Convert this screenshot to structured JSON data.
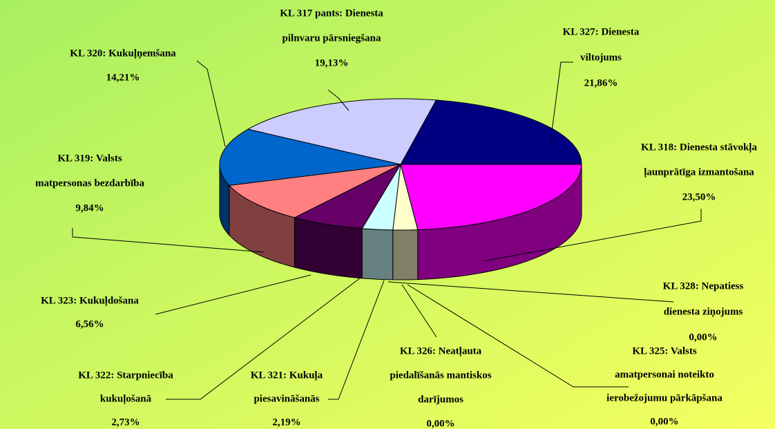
{
  "chart_data": {
    "type": "pie3d",
    "labels": [
      [
        "KL 327: Dienesta",
        "viltojums"
      ],
      [
        "KL 318: Dienesta stāvokļa",
        "ļaunprātīga izmantošana"
      ],
      [
        "KL 328: Nepatiess",
        "dienesta ziņojums"
      ],
      [
        "KL 325: Valsts",
        "amatpersonai noteikto",
        "ierobežojumu pārkāpšana"
      ],
      [
        "KL 326: Neatļauta",
        "piedalīšanās mantiskos",
        "darījumos"
      ],
      [
        "KL 321: Kukuļa",
        "piesavināšanās"
      ],
      [
        "KL 322: Starpniecība",
        "kukuļošanā"
      ],
      [
        "KL 323: Kukuļdošana"
      ],
      [
        "KL 319: Valsts",
        "matpersonas bezdarbība"
      ],
      [
        "KL 320: Kukuļņemšana"
      ],
      [
        "KL 317 pants: Dienesta",
        "pilnvaru pārsniegšana"
      ]
    ],
    "values": [
      21.86,
      23.5,
      0.0,
      0.0,
      0.0,
      2.19,
      2.73,
      6.56,
      9.84,
      14.21,
      19.13
    ],
    "value_labels": [
      "21,86%",
      "23,50%",
      "0,00%",
      "0,00%",
      "0,00%",
      "2,19%",
      "2,73%",
      "6,56%",
      "9,84%",
      "14,21%",
      "19,13%"
    ],
    "colors": [
      "#000080",
      "#ff00ff",
      "#ffffcc",
      "#ffffcc",
      "#ffffcc",
      "#ffffcc",
      "#ccffff",
      "#660066",
      "#ff8080",
      "#0066cc",
      "#ccccff"
    ],
    "side_colors": [
      "#000040",
      "#800080",
      "#808066",
      "#808066",
      "#808066",
      "#808066",
      "#668080",
      "#330033",
      "#804040",
      "#003366",
      "#666680"
    ]
  }
}
